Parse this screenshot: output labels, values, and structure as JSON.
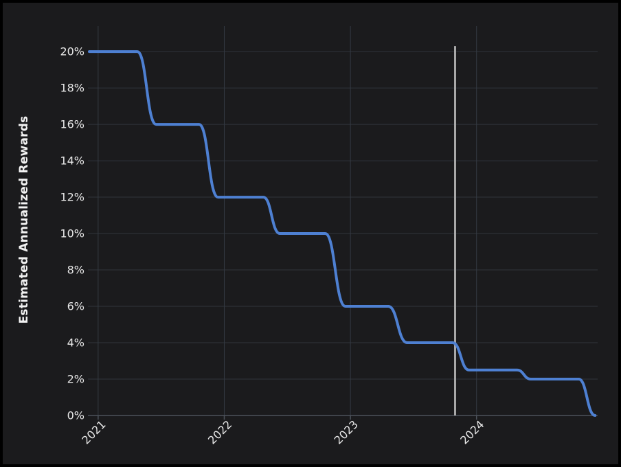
{
  "colors": {
    "background": "#1b1b1d",
    "panel_border": "#000000",
    "line": "#4e80d2",
    "grid_horizontal": "#30353c",
    "grid_vertical": "#343a43",
    "axis": "#4d525b",
    "marker": "#a8a8a8",
    "text": "#e8e8e8"
  },
  "chart_data": {
    "type": "line",
    "title": "",
    "xlabel": "",
    "ylabel": "Estimated Annualized Rewards",
    "legend": "none",
    "grid": "on",
    "xlim": [
      2020.93,
      2024.96
    ],
    "ylim": [
      0,
      21.4
    ],
    "x_ticks": [
      2021,
      2022,
      2023,
      2024
    ],
    "x_tick_labels": [
      "2021",
      "2022",
      "2023",
      "2024"
    ],
    "y_ticks": [
      0,
      2,
      4,
      6,
      8,
      10,
      12,
      14,
      16,
      18,
      20
    ],
    "y_tick_labels": [
      "0%",
      "2%",
      "4%",
      "6%",
      "8%",
      "10%",
      "12%",
      "14%",
      "16%",
      "18%",
      "20%"
    ],
    "series": [
      {
        "name": "estimated-annualized-rewards",
        "color": "#4e80d2",
        "points": [
          [
            2020.93,
            20
          ],
          [
            2021.31,
            20
          ],
          [
            2021.46,
            16
          ],
          [
            2021.8,
            16
          ],
          [
            2021.95,
            12
          ],
          [
            2022.31,
            12
          ],
          [
            2022.44,
            10
          ],
          [
            2022.8,
            10
          ],
          [
            2022.96,
            6
          ],
          [
            2023.3,
            6
          ],
          [
            2023.45,
            4
          ],
          [
            2023.81,
            4
          ],
          [
            2023.94,
            2.5
          ],
          [
            2024.32,
            2.5
          ],
          [
            2024.43,
            2
          ],
          [
            2024.81,
            2
          ],
          [
            2024.94,
            0
          ]
        ]
      }
    ],
    "marker_line": {
      "x": 2023.83,
      "y_span": [
        0,
        20.3
      ],
      "color": "#a8a8a8"
    }
  }
}
